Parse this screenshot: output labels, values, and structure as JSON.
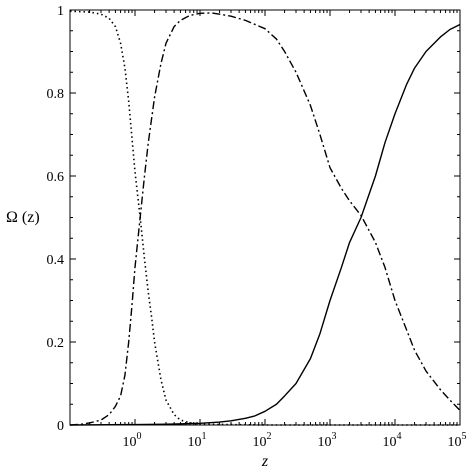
{
  "chart_data": {
    "type": "line",
    "title": "",
    "xlabel": "z",
    "ylabel": "Ω (z)",
    "x_scale": "log",
    "xlim": [
      0.1,
      100000
    ],
    "ylim": [
      0,
      1
    ],
    "grid": false,
    "legend": "none",
    "x_ticks": [
      {
        "value": 1,
        "base": "10",
        "exp": "0"
      },
      {
        "value": 10,
        "base": "10",
        "exp": "1"
      },
      {
        "value": 100,
        "base": "10",
        "exp": "2"
      },
      {
        "value": 1000,
        "base": "10",
        "exp": "3"
      },
      {
        "value": 10000,
        "base": "10",
        "exp": "4"
      },
      {
        "value": 100000,
        "base": "10",
        "exp": "5"
      }
    ],
    "y_ticks": [
      {
        "value": 0,
        "label": "0"
      },
      {
        "value": 0.2,
        "label": "0.2"
      },
      {
        "value": 0.4,
        "label": "0.4"
      },
      {
        "value": 0.6,
        "label": "0.6"
      },
      {
        "value": 0.8,
        "label": "0.8"
      },
      {
        "value": 1,
        "label": "1"
      }
    ],
    "series": [
      {
        "style": "dotted",
        "color": "#000000",
        "points": [
          [
            0.1,
            0.997
          ],
          [
            0.2,
            0.995
          ],
          [
            0.3,
            0.99
          ],
          [
            0.4,
            0.98
          ],
          [
            0.5,
            0.96
          ],
          [
            0.6,
            0.92
          ],
          [
            0.7,
            0.86
          ],
          [
            0.8,
            0.78
          ],
          [
            0.9,
            0.69
          ],
          [
            1.0,
            0.61
          ],
          [
            1.2,
            0.5
          ],
          [
            1.4,
            0.4
          ],
          [
            1.6,
            0.32
          ],
          [
            1.8,
            0.26
          ],
          [
            2.0,
            0.2
          ],
          [
            2.5,
            0.11
          ],
          [
            3.0,
            0.06
          ],
          [
            4.0,
            0.025
          ],
          [
            5.0,
            0.012
          ],
          [
            7.0,
            0.005
          ],
          [
            10,
            0.002
          ],
          [
            100,
            0.0
          ],
          [
            1000,
            0.0
          ],
          [
            10000,
            0.0
          ],
          [
            100000,
            0.0
          ]
        ]
      },
      {
        "style": "dashdot",
        "color": "#000000",
        "points": [
          [
            0.1,
            0.0
          ],
          [
            0.15,
            0.002
          ],
          [
            0.2,
            0.005
          ],
          [
            0.3,
            0.012
          ],
          [
            0.4,
            0.025
          ],
          [
            0.5,
            0.045
          ],
          [
            0.6,
            0.07
          ],
          [
            0.7,
            0.12
          ],
          [
            0.8,
            0.2
          ],
          [
            0.9,
            0.29
          ],
          [
            1.0,
            0.38
          ],
          [
            1.2,
            0.5
          ],
          [
            1.4,
            0.6
          ],
          [
            1.6,
            0.68
          ],
          [
            2.0,
            0.79
          ],
          [
            2.5,
            0.87
          ],
          [
            3.0,
            0.92
          ],
          [
            4.0,
            0.96
          ],
          [
            5.0,
            0.975
          ],
          [
            7.0,
            0.987
          ],
          [
            10,
            0.992
          ],
          [
            15,
            0.993
          ],
          [
            20,
            0.99
          ],
          [
            30,
            0.985
          ],
          [
            50,
            0.975
          ],
          [
            100,
            0.955
          ],
          [
            150,
            0.93
          ],
          [
            200,
            0.9
          ],
          [
            300,
            0.85
          ],
          [
            500,
            0.77
          ],
          [
            700,
            0.7
          ],
          [
            1000,
            0.62
          ],
          [
            1500,
            0.57
          ],
          [
            2000,
            0.54
          ],
          [
            3000,
            0.505
          ],
          [
            5000,
            0.44
          ],
          [
            7000,
            0.38
          ],
          [
            10000,
            0.3
          ],
          [
            15000,
            0.23
          ],
          [
            20000,
            0.18
          ],
          [
            30000,
            0.13
          ],
          [
            50000,
            0.085
          ],
          [
            70000,
            0.06
          ],
          [
            100000,
            0.035
          ]
        ]
      },
      {
        "style": "solid",
        "color": "#000000",
        "points": [
          [
            0.1,
            0.0
          ],
          [
            1,
            0.001
          ],
          [
            3,
            0.002
          ],
          [
            10,
            0.004
          ],
          [
            20,
            0.007
          ],
          [
            30,
            0.01
          ],
          [
            50,
            0.016
          ],
          [
            70,
            0.022
          ],
          [
            100,
            0.033
          ],
          [
            150,
            0.05
          ],
          [
            200,
            0.07
          ],
          [
            300,
            0.1
          ],
          [
            500,
            0.16
          ],
          [
            700,
            0.22
          ],
          [
            1000,
            0.3
          ],
          [
            1500,
            0.38
          ],
          [
            2000,
            0.44
          ],
          [
            3000,
            0.5
          ],
          [
            5000,
            0.6
          ],
          [
            7000,
            0.68
          ],
          [
            10000,
            0.75
          ],
          [
            15000,
            0.82
          ],
          [
            20000,
            0.86
          ],
          [
            30000,
            0.9
          ],
          [
            50000,
            0.935
          ],
          [
            70000,
            0.953
          ],
          [
            100000,
            0.965
          ]
        ]
      }
    ]
  }
}
